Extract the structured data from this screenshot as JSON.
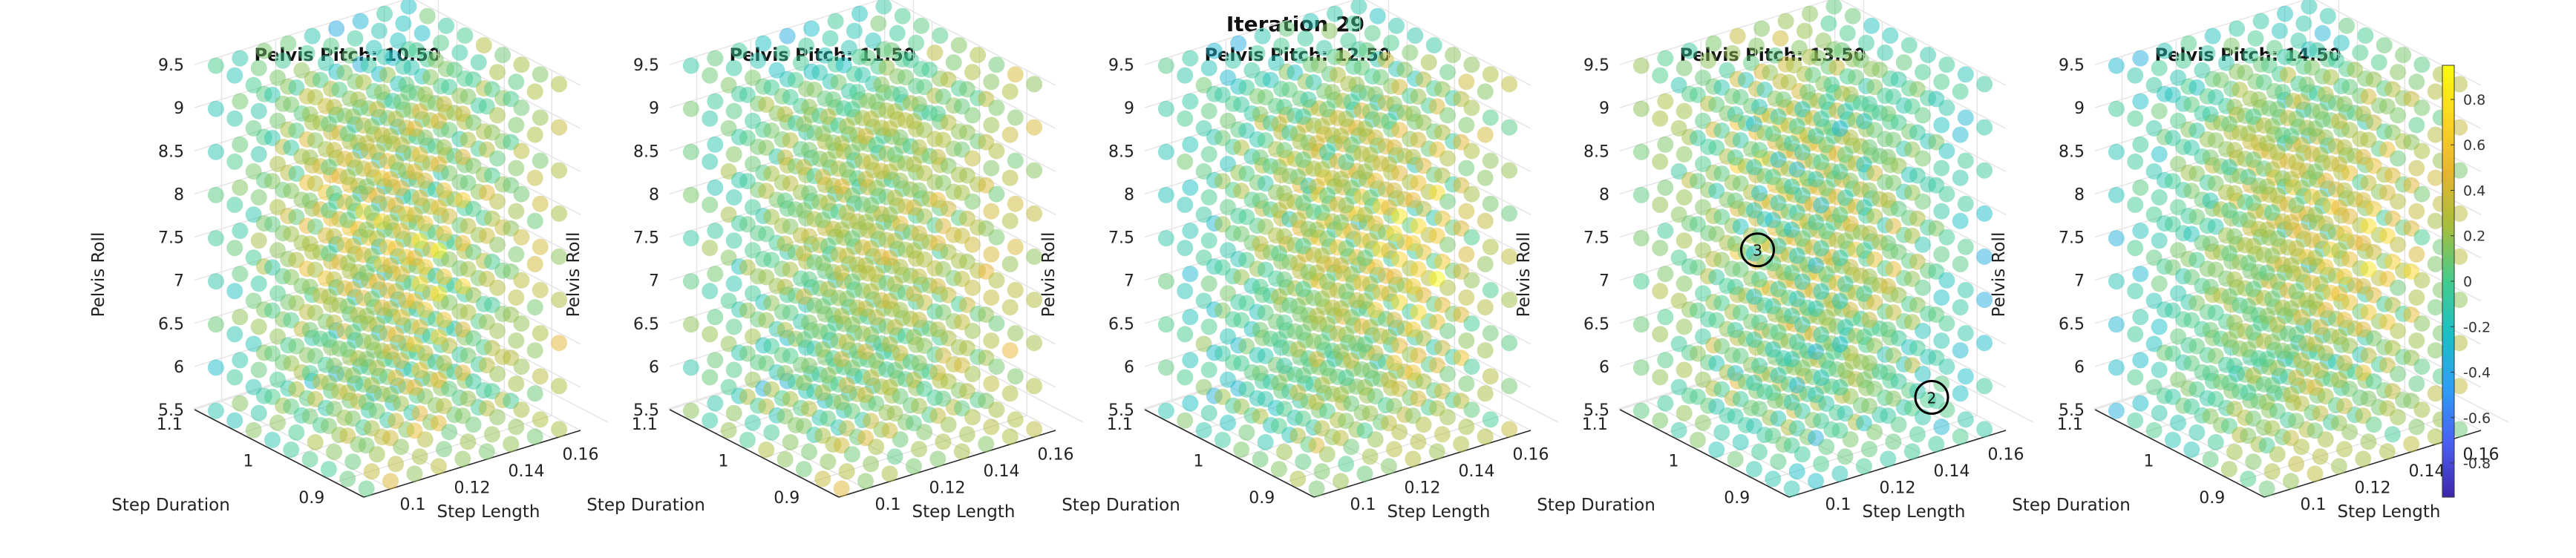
{
  "figure": {
    "title": "Iteration 29"
  },
  "chart_data": [
    {
      "type": "scatter",
      "title": "Pelvis Pitch: 10.50",
      "xlabel": "Step Length",
      "ylabel": "Step Duration",
      "zlabel": "Pelvis Roll",
      "x_ticks": [
        "0.1",
        "0.12",
        "0.14",
        "0.16"
      ],
      "y_ticks": [
        "0.9",
        "1",
        "1.1"
      ],
      "z_ticks": [
        "5.5",
        "6",
        "6.5",
        "7",
        "7.5",
        "8",
        "8.5",
        "9",
        "9.5"
      ],
      "xlim": [
        0.09,
        0.17
      ],
      "ylim": [
        0.85,
        1.15
      ],
      "zlim": [
        5.5,
        9.5
      ],
      "grid": true,
      "markers": []
    },
    {
      "type": "scatter",
      "title": "Pelvis Pitch: 11.50",
      "xlabel": "Step Length",
      "ylabel": "Step Duration",
      "zlabel": "Pelvis Roll",
      "x_ticks": [
        "0.1",
        "0.12",
        "0.14",
        "0.16"
      ],
      "y_ticks": [
        "0.9",
        "1",
        "1.1"
      ],
      "z_ticks": [
        "5.5",
        "6",
        "6.5",
        "7",
        "7.5",
        "8",
        "8.5",
        "9",
        "9.5"
      ],
      "xlim": [
        0.09,
        0.17
      ],
      "ylim": [
        0.85,
        1.15
      ],
      "zlim": [
        5.5,
        9.5
      ],
      "grid": true,
      "markers": []
    },
    {
      "type": "scatter",
      "title": "Pelvis Pitch: 12.50",
      "xlabel": "Step Length",
      "ylabel": "Step Duration",
      "zlabel": "Pelvis Roll",
      "x_ticks": [
        "0.1",
        "0.12",
        "0.14",
        "0.16"
      ],
      "y_ticks": [
        "0.9",
        "1",
        "1.1"
      ],
      "z_ticks": [
        "5.5",
        "6",
        "6.5",
        "7",
        "7.5",
        "8",
        "8.5",
        "9",
        "9.5"
      ],
      "xlim": [
        0.09,
        0.17
      ],
      "ylim": [
        0.85,
        1.15
      ],
      "zlim": [
        5.5,
        9.5
      ],
      "grid": true,
      "markers": []
    },
    {
      "type": "scatter",
      "title": "Pelvis Pitch: 13.50",
      "xlabel": "Step Length",
      "ylabel": "Step Duration",
      "zlabel": "Pelvis Roll",
      "x_ticks": [
        "0.1",
        "0.12",
        "0.14",
        "0.16"
      ],
      "y_ticks": [
        "0.9",
        "1",
        "1.1"
      ],
      "z_ticks": [
        "5.5",
        "6",
        "6.5",
        "7",
        "7.5",
        "8",
        "8.5",
        "9",
        "9.5"
      ],
      "xlim": [
        0.09,
        0.17
      ],
      "ylim": [
        0.85,
        1.15
      ],
      "zlim": [
        5.5,
        9.5
      ],
      "grid": true,
      "markers": [
        {
          "label": "3",
          "x": 0.12,
          "y": 1.05,
          "z": 7.4
        },
        {
          "label": "2",
          "x": 0.17,
          "y": 0.97,
          "z": 5.5
        }
      ]
    },
    {
      "type": "scatter",
      "title": "Pelvis Pitch: 14.50",
      "xlabel": "Step Length",
      "ylabel": "Step Duration",
      "zlabel": "Pelvis Roll",
      "x_ticks": [
        "0.1",
        "0.12",
        "0.14",
        "0.16"
      ],
      "y_ticks": [
        "0.9",
        "1",
        "1.1"
      ],
      "z_ticks": [
        "5.5",
        "6",
        "6.5",
        "7",
        "7.5",
        "8",
        "8.5",
        "9",
        "9.5"
      ],
      "xlim": [
        0.09,
        0.17
      ],
      "ylim": [
        0.85,
        1.15
      ],
      "zlim": [
        5.5,
        9.5
      ],
      "grid": true,
      "markers": []
    }
  ],
  "colorbar": {
    "ticks": [
      "0.8",
      "0.6",
      "0.4",
      "0.2",
      "0",
      "-0.2",
      "-0.4",
      "-0.6",
      "-0.8"
    ],
    "range": [
      -0.95,
      0.95
    ],
    "colors": [
      "#3e26a8",
      "#4a5ff2",
      "#2f9df5",
      "#1ac0c6",
      "#45cc8d",
      "#a5be3d",
      "#e6b52f",
      "#fbd525",
      "#f9fb0e"
    ]
  }
}
